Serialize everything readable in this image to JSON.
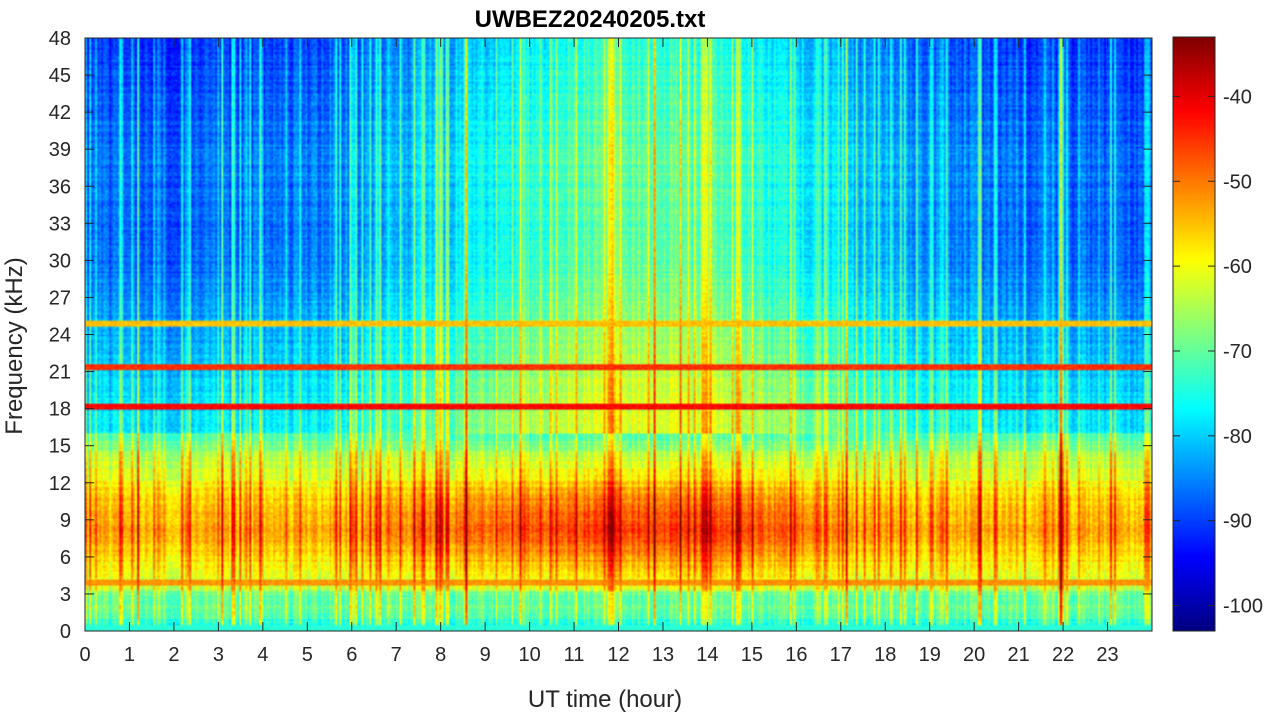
{
  "chart_data": {
    "type": "heatmap",
    "title": "UWBEZ20240205.txt",
    "xlabel": "UT time (hour)",
    "ylabel": "Frequency (kHz)",
    "xlim": [
      0,
      24
    ],
    "ylim": [
      0,
      48
    ],
    "x_ticks": [
      "0",
      "1",
      "2",
      "3",
      "4",
      "5",
      "6",
      "7",
      "8",
      "9",
      "10",
      "11",
      "12",
      "13",
      "14",
      "15",
      "16",
      "17",
      "18",
      "19",
      "20",
      "21",
      "22",
      "23"
    ],
    "y_ticks": [
      "0",
      "3",
      "6",
      "9",
      "12",
      "15",
      "18",
      "21",
      "24",
      "27",
      "30",
      "33",
      "36",
      "39",
      "42",
      "45",
      "48"
    ],
    "colorbar": {
      "ticks": [
        "-40",
        "-50",
        "-60",
        "-70",
        "-80",
        "-90",
        "-100"
      ],
      "range": [
        -103,
        -33
      ],
      "colormap": "jet"
    },
    "background_level": {
      "high_freq_night": -88,
      "high_freq_day": -70,
      "low_freq_peak": -50
    },
    "band_features": [
      {
        "freq_khz": 18.2,
        "level": -42,
        "kind": "persistent line"
      },
      {
        "freq_khz": 21.4,
        "level": -45,
        "kind": "persistent line"
      },
      {
        "freq_khz": 24.9,
        "level": -55,
        "kind": "persistent line"
      },
      {
        "freq_khz": 3.9,
        "level": -52,
        "kind": "persistent line"
      }
    ],
    "activity_window_hours": [
      6.5,
      16.5
    ],
    "grid": false
  }
}
